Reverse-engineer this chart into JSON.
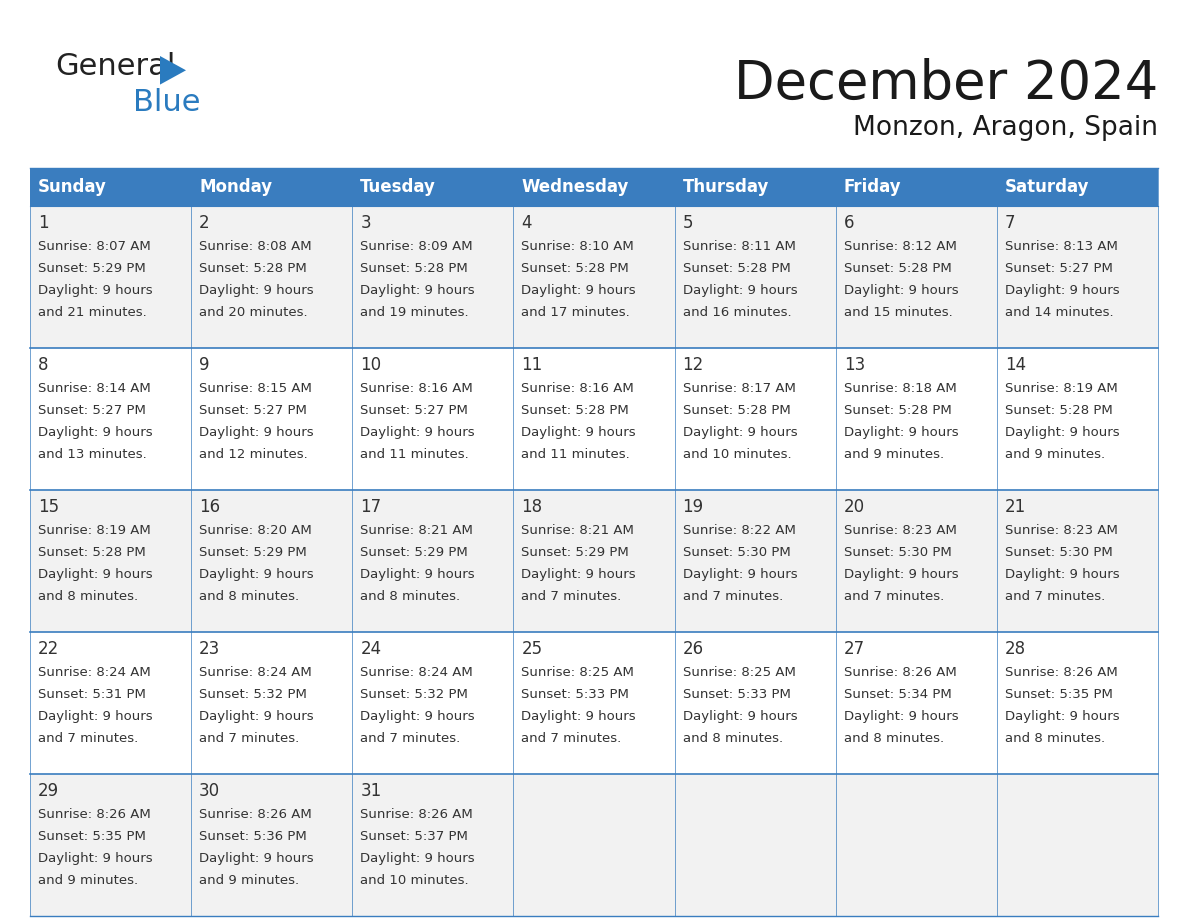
{
  "title": "December 2024",
  "subtitle": "Monzon, Aragon, Spain",
  "header_color": "#3a7dbf",
  "header_text_color": "#ffffff",
  "cell_bg_even": "#f2f2f2",
  "cell_bg_odd": "#ffffff",
  "day_headers": [
    "Sunday",
    "Monday",
    "Tuesday",
    "Wednesday",
    "Thursday",
    "Friday",
    "Saturday"
  ],
  "calendar_data": [
    [
      {
        "day": 1,
        "sunrise": "8:07 AM",
        "sunset": "5:29 PM",
        "daylight_hours": 9,
        "daylight_minutes": 21
      },
      {
        "day": 2,
        "sunrise": "8:08 AM",
        "sunset": "5:28 PM",
        "daylight_hours": 9,
        "daylight_minutes": 20
      },
      {
        "day": 3,
        "sunrise": "8:09 AM",
        "sunset": "5:28 PM",
        "daylight_hours": 9,
        "daylight_minutes": 19
      },
      {
        "day": 4,
        "sunrise": "8:10 AM",
        "sunset": "5:28 PM",
        "daylight_hours": 9,
        "daylight_minutes": 17
      },
      {
        "day": 5,
        "sunrise": "8:11 AM",
        "sunset": "5:28 PM",
        "daylight_hours": 9,
        "daylight_minutes": 16
      },
      {
        "day": 6,
        "sunrise": "8:12 AM",
        "sunset": "5:28 PM",
        "daylight_hours": 9,
        "daylight_minutes": 15
      },
      {
        "day": 7,
        "sunrise": "8:13 AM",
        "sunset": "5:27 PM",
        "daylight_hours": 9,
        "daylight_minutes": 14
      }
    ],
    [
      {
        "day": 8,
        "sunrise": "8:14 AM",
        "sunset": "5:27 PM",
        "daylight_hours": 9,
        "daylight_minutes": 13
      },
      {
        "day": 9,
        "sunrise": "8:15 AM",
        "sunset": "5:27 PM",
        "daylight_hours": 9,
        "daylight_minutes": 12
      },
      {
        "day": 10,
        "sunrise": "8:16 AM",
        "sunset": "5:27 PM",
        "daylight_hours": 9,
        "daylight_minutes": 11
      },
      {
        "day": 11,
        "sunrise": "8:16 AM",
        "sunset": "5:28 PM",
        "daylight_hours": 9,
        "daylight_minutes": 11
      },
      {
        "day": 12,
        "sunrise": "8:17 AM",
        "sunset": "5:28 PM",
        "daylight_hours": 9,
        "daylight_minutes": 10
      },
      {
        "day": 13,
        "sunrise": "8:18 AM",
        "sunset": "5:28 PM",
        "daylight_hours": 9,
        "daylight_minutes": 9
      },
      {
        "day": 14,
        "sunrise": "8:19 AM",
        "sunset": "5:28 PM",
        "daylight_hours": 9,
        "daylight_minutes": 9
      }
    ],
    [
      {
        "day": 15,
        "sunrise": "8:19 AM",
        "sunset": "5:28 PM",
        "daylight_hours": 9,
        "daylight_minutes": 8
      },
      {
        "day": 16,
        "sunrise": "8:20 AM",
        "sunset": "5:29 PM",
        "daylight_hours": 9,
        "daylight_minutes": 8
      },
      {
        "day": 17,
        "sunrise": "8:21 AM",
        "sunset": "5:29 PM",
        "daylight_hours": 9,
        "daylight_minutes": 8
      },
      {
        "day": 18,
        "sunrise": "8:21 AM",
        "sunset": "5:29 PM",
        "daylight_hours": 9,
        "daylight_minutes": 7
      },
      {
        "day": 19,
        "sunrise": "8:22 AM",
        "sunset": "5:30 PM",
        "daylight_hours": 9,
        "daylight_minutes": 7
      },
      {
        "day": 20,
        "sunrise": "8:23 AM",
        "sunset": "5:30 PM",
        "daylight_hours": 9,
        "daylight_minutes": 7
      },
      {
        "day": 21,
        "sunrise": "8:23 AM",
        "sunset": "5:30 PM",
        "daylight_hours": 9,
        "daylight_minutes": 7
      }
    ],
    [
      {
        "day": 22,
        "sunrise": "8:24 AM",
        "sunset": "5:31 PM",
        "daylight_hours": 9,
        "daylight_minutes": 7
      },
      {
        "day": 23,
        "sunrise": "8:24 AM",
        "sunset": "5:32 PM",
        "daylight_hours": 9,
        "daylight_minutes": 7
      },
      {
        "day": 24,
        "sunrise": "8:24 AM",
        "sunset": "5:32 PM",
        "daylight_hours": 9,
        "daylight_minutes": 7
      },
      {
        "day": 25,
        "sunrise": "8:25 AM",
        "sunset": "5:33 PM",
        "daylight_hours": 9,
        "daylight_minutes": 7
      },
      {
        "day": 26,
        "sunrise": "8:25 AM",
        "sunset": "5:33 PM",
        "daylight_hours": 9,
        "daylight_minutes": 8
      },
      {
        "day": 27,
        "sunrise": "8:26 AM",
        "sunset": "5:34 PM",
        "daylight_hours": 9,
        "daylight_minutes": 8
      },
      {
        "day": 28,
        "sunrise": "8:26 AM",
        "sunset": "5:35 PM",
        "daylight_hours": 9,
        "daylight_minutes": 8
      }
    ],
    [
      {
        "day": 29,
        "sunrise": "8:26 AM",
        "sunset": "5:35 PM",
        "daylight_hours": 9,
        "daylight_minutes": 9
      },
      {
        "day": 30,
        "sunrise": "8:26 AM",
        "sunset": "5:36 PM",
        "daylight_hours": 9,
        "daylight_minutes": 9
      },
      {
        "day": 31,
        "sunrise": "8:26 AM",
        "sunset": "5:37 PM",
        "daylight_hours": 9,
        "daylight_minutes": 10
      },
      null,
      null,
      null,
      null
    ]
  ],
  "num_cols": 7,
  "num_rows": 5,
  "title_fontsize": 38,
  "subtitle_fontsize": 19,
  "header_fontsize": 12,
  "day_num_fontsize": 12,
  "cell_fontsize": 9.5,
  "line_color": "#3a7dbf",
  "text_color": "#333333",
  "bg_color": "#ffffff",
  "logo_general_color": "#222222",
  "logo_blue_color": "#2a7bbf",
  "logo_triangle_color": "#2a7bbf"
}
